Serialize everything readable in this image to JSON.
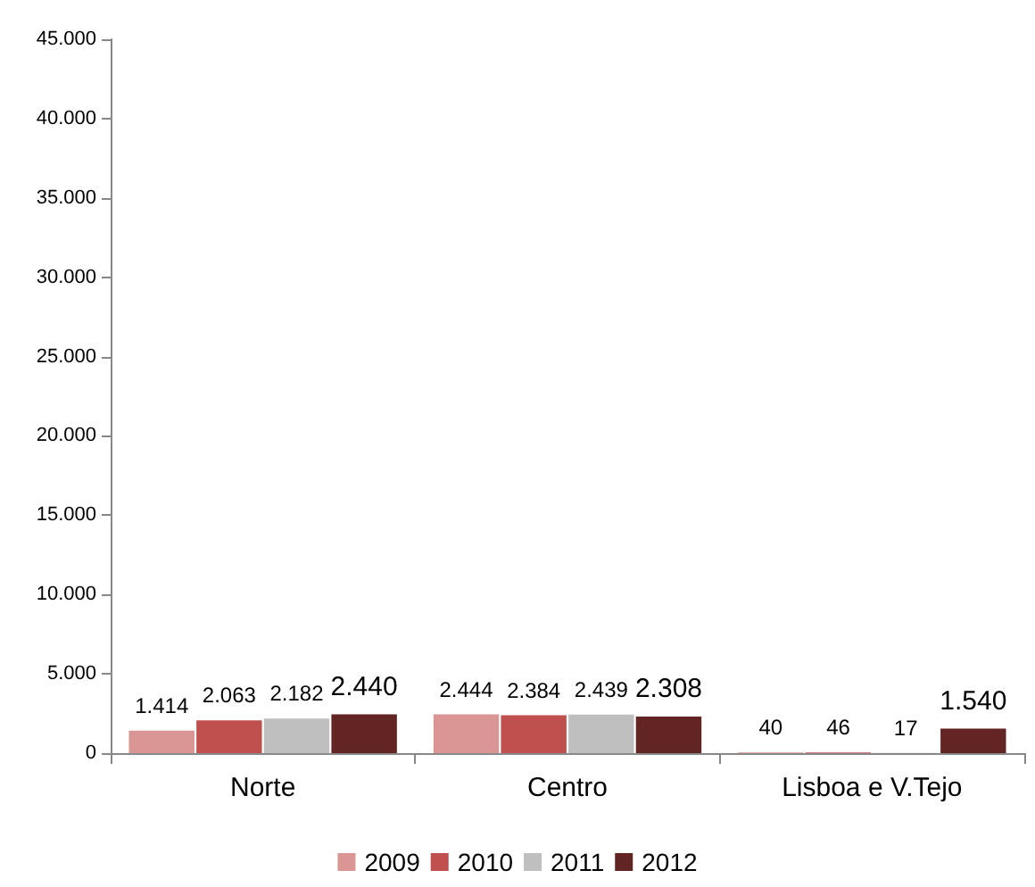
{
  "chart_data": {
    "type": "bar",
    "categories": [
      "Norte",
      "Centro",
      "Lisboa e V.Tejo"
    ],
    "series": [
      {
        "name": "2009",
        "color": "#d99694",
        "values": [
          1414,
          2444,
          40
        ],
        "value_labels": [
          "1.414",
          "2.444",
          "40"
        ]
      },
      {
        "name": "2010",
        "color": "#c0504d",
        "values": [
          2063,
          2384,
          46
        ],
        "value_labels": [
          "2.063",
          "2.384",
          "46"
        ]
      },
      {
        "name": "2011",
        "color": "#bfbfbf",
        "values": [
          2182,
          2439,
          17
        ],
        "value_labels": [
          "2.182",
          "2.439",
          "17"
        ]
      },
      {
        "name": "2012",
        "color": "#632523",
        "values": [
          2440,
          2308,
          1540
        ],
        "value_labels": [
          "2.440",
          "2.308",
          "1.540"
        ]
      }
    ],
    "ylim": [
      0,
      45000
    ],
    "yticks": [
      {
        "value": 0,
        "label": "0"
      },
      {
        "value": 5000,
        "label": "5.000"
      },
      {
        "value": 10000,
        "label": "10.000"
      },
      {
        "value": 15000,
        "label": "15.000"
      },
      {
        "value": 20000,
        "label": "20.000"
      },
      {
        "value": 25000,
        "label": "25.000"
      },
      {
        "value": 30000,
        "label": "30.000"
      },
      {
        "value": 35000,
        "label": "35.000"
      },
      {
        "value": 40000,
        "label": "40.000"
      },
      {
        "value": 45000,
        "label": "45.000"
      }
    ],
    "grid": false,
    "legend": "bottom"
  }
}
